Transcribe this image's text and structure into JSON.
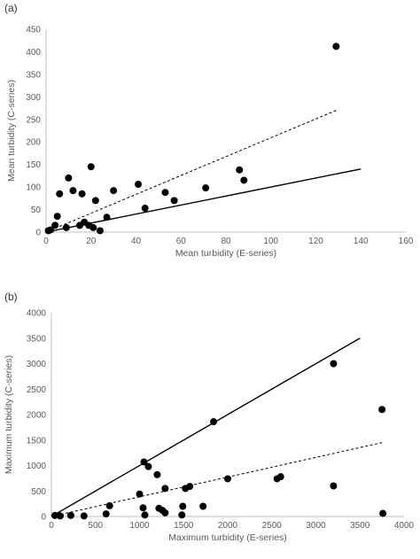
{
  "chart_data": [
    {
      "panel_label": "(a)",
      "type": "scatter",
      "xlabel": "Mean turbidity (E-series)",
      "ylabel": "Mean turbidity (C-series)",
      "xlim": [
        0,
        160
      ],
      "ylim": [
        0,
        450
      ],
      "xticks": [
        0,
        20,
        40,
        60,
        80,
        100,
        120,
        140,
        160
      ],
      "yticks": [
        0,
        50,
        100,
        150,
        200,
        250,
        300,
        350,
        400,
        450
      ],
      "grid": false,
      "legend": "none",
      "series": [
        {
          "points": [
            [
              1,
              3
            ],
            [
              2,
              5
            ],
            [
              4,
              15
            ],
            [
              5,
              35
            ],
            [
              6,
              85
            ],
            [
              9,
              10
            ],
            [
              10,
              120
            ],
            [
              12,
              92
            ],
            [
              15,
              15
            ],
            [
              16,
              85
            ],
            [
              17,
              22
            ],
            [
              19,
              15
            ],
            [
              20,
              145
            ],
            [
              21,
              10
            ],
            [
              22,
              70
            ],
            [
              24,
              3
            ],
            [
              27,
              33
            ],
            [
              30,
              92
            ],
            [
              41,
              106
            ],
            [
              44,
              53
            ],
            [
              53,
              88
            ],
            [
              57,
              70
            ],
            [
              71,
              98
            ],
            [
              86,
              138
            ],
            [
              88,
              115
            ],
            [
              129,
              412
            ]
          ],
          "color": "#000000"
        }
      ],
      "lines": [
        {
          "style": "solid",
          "x": [
            0,
            140
          ],
          "y": [
            0,
            140
          ],
          "color": "#000000"
        },
        {
          "style": "dashed",
          "x": [
            0,
            129
          ],
          "y": [
            0,
            270
          ],
          "color": "#000000"
        }
      ]
    },
    {
      "panel_label": "(b)",
      "type": "scatter",
      "xlabel": "Maximum turbidity (E-series)",
      "ylabel": "Maximum turbidity (C-series)",
      "xlim": [
        0,
        4000
      ],
      "ylim": [
        0,
        4000
      ],
      "xticks": [
        0,
        500,
        1000,
        1500,
        2000,
        2500,
        3000,
        3500,
        4000
      ],
      "yticks": [
        0,
        500,
        1000,
        1500,
        2000,
        2500,
        3000,
        3500,
        4000
      ],
      "grid": false,
      "legend": "none",
      "series": [
        {
          "points": [
            [
              40,
              20
            ],
            [
              100,
              10
            ],
            [
              220,
              20
            ],
            [
              370,
              10
            ],
            [
              620,
              50
            ],
            [
              660,
              210
            ],
            [
              1000,
              440
            ],
            [
              1040,
              170
            ],
            [
              1050,
              1070
            ],
            [
              1060,
              30
            ],
            [
              1100,
              980
            ],
            [
              1200,
              820
            ],
            [
              1220,
              160
            ],
            [
              1260,
              120
            ],
            [
              1290,
              550
            ],
            [
              1290,
              70
            ],
            [
              1480,
              30
            ],
            [
              1490,
              200
            ],
            [
              1520,
              550
            ],
            [
              1570,
              590
            ],
            [
              1720,
              200
            ],
            [
              1840,
              1860
            ],
            [
              2000,
              740
            ],
            [
              2560,
              740
            ],
            [
              2600,
              780
            ],
            [
              3200,
              3000
            ],
            [
              3200,
              600
            ],
            [
              3750,
              2100
            ],
            [
              3760,
              60
            ]
          ],
          "color": "#000000"
        }
      ],
      "lines": [
        {
          "style": "solid",
          "x": [
            0,
            3500
          ],
          "y": [
            0,
            3500
          ],
          "color": "#000000"
        },
        {
          "style": "dashed",
          "x": [
            0,
            3750
          ],
          "y": [
            0,
            1450
          ],
          "color": "#000000"
        }
      ]
    }
  ]
}
